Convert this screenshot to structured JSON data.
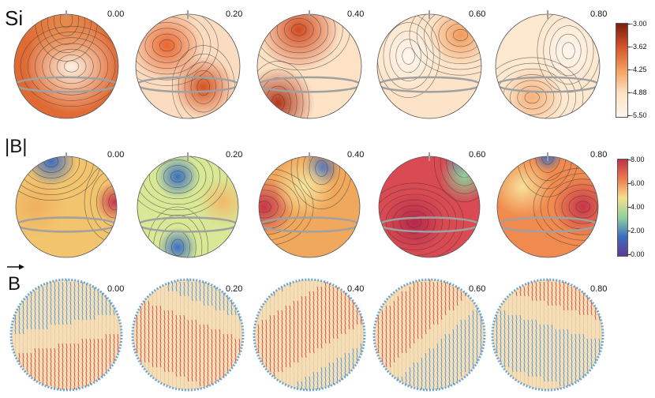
{
  "rows": [
    {
      "label": "Si",
      "phases": [
        "0.00",
        "0.20",
        "0.40",
        "0.60",
        "0.80"
      ],
      "colorbar": {
        "ticks": [
          "-3.00",
          "-3.62",
          "-4.25",
          "-4.88",
          "-5.50"
        ],
        "colors": [
          "#7a1e0e",
          "#d6542a",
          "#f3a060",
          "#fde3c4",
          "#fff5ec"
        ]
      }
    },
    {
      "label": "|B|",
      "phases": [
        "0.00",
        "0.20",
        "0.40",
        "0.60",
        "0.80"
      ],
      "colorbar": {
        "ticks": [
          "8.00",
          "6.00",
          "4.00",
          "2.00",
          "0.00"
        ],
        "colors": [
          "#c0324a",
          "#ef7a4c",
          "#f5e08c",
          "#8fd19c",
          "#3a6ec0",
          "#5e3a98"
        ]
      }
    },
    {
      "label": "B",
      "phases": [
        "0.00",
        "0.20",
        "0.40",
        "0.60",
        "0.80"
      ]
    }
  ],
  "colors": {
    "ring": "#a0a0a0",
    "contour": "#3a3a3a",
    "arrow_red": "#d8453a",
    "arrow_blue": "#4a92d0",
    "sphere_base": "#f5dfb8"
  }
}
